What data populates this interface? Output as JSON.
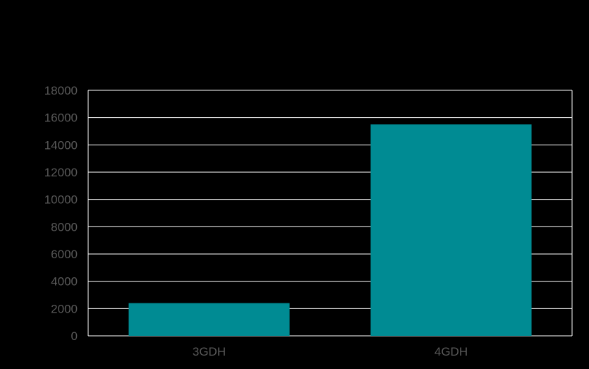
{
  "chart_data": {
    "type": "bar",
    "categories": [
      "3GDH",
      "4GDH"
    ],
    "values": [
      2400,
      15500
    ],
    "yticks": [
      "0",
      "2000",
      "4000",
      "6000",
      "8000",
      "10000",
      "12000",
      "14000",
      "16000",
      "18000"
    ],
    "ylim": [
      0,
      18000
    ],
    "title": "",
    "xlabel": "",
    "ylabel": "",
    "grid": true,
    "legend": "none",
    "colors": {
      "bar": "#008B93",
      "background": "#000000",
      "grid": "#FFFFFF",
      "tick_text": "#595959"
    }
  }
}
